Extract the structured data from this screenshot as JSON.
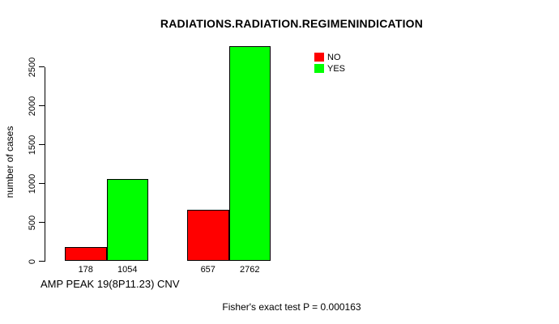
{
  "chart_data": {
    "type": "bar",
    "title": "RADIATIONS.RADIATION.REGIMENINDICATION",
    "ylabel": "number of cases",
    "xlabel": "AMP PEAK 19(8P11.23) CNV",
    "yticks": [
      0,
      500,
      1000,
      1500,
      2000,
      2500
    ],
    "ylim": [
      0,
      2762
    ],
    "grid": false,
    "series_names": [
      "NO",
      "YES"
    ],
    "series_colors": {
      "NO": "#ff0000",
      "YES": "#00ff00"
    },
    "groups": [
      {
        "bars": [
          {
            "series": "NO",
            "value": 178,
            "label": "178"
          },
          {
            "series": "YES",
            "value": 1054,
            "label": "1054"
          }
        ]
      },
      {
        "bars": [
          {
            "series": "NO",
            "value": 657,
            "label": "657"
          },
          {
            "series": "YES",
            "value": 2762,
            "label": "2762"
          }
        ]
      }
    ],
    "legend": {
      "position": "top-right",
      "entries": [
        {
          "label": "NO",
          "color": "#ff0000"
        },
        {
          "label": "YES",
          "color": "#00ff00"
        }
      ]
    },
    "annotation": "Fisher's exact test P = 0.000163"
  }
}
